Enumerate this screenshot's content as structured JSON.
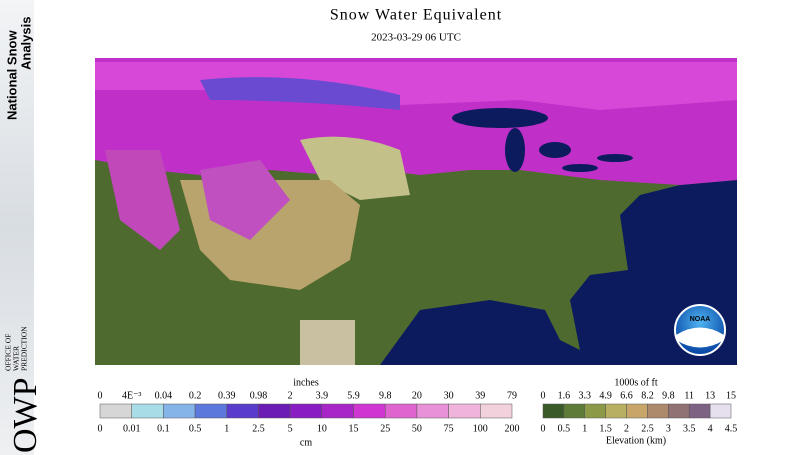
{
  "sidebar": {
    "title_lines": [
      "National Snow",
      "Analysis"
    ],
    "logo": "OWP",
    "org_lines": [
      "OFFICE OF",
      "WATER",
      "PREDICTION"
    ]
  },
  "header": {
    "title": "Snow Water Equivalent",
    "subtitle": "2023-03-29 06 UTC"
  },
  "map": {
    "badge": "NOAA"
  },
  "swe_legend": {
    "unit_top": "inches",
    "unit_bottom": "cm",
    "top_labels": [
      0,
      "4E⁻³",
      0.04,
      0.2,
      0.39,
      0.98,
      2,
      3.9,
      5.9,
      9.8,
      20,
      30,
      39,
      79
    ],
    "bottom_labels": [
      0,
      0.01,
      0.1,
      0.5,
      1,
      2.5,
      5,
      10,
      15,
      25,
      50,
      75,
      100,
      200
    ],
    "colors": [
      "#d6d6d6",
      "#a8dce6",
      "#84b4e8",
      "#5c78dc",
      "#5a3ccc",
      "#6a1cb4",
      "#8a1cc4",
      "#a826c8",
      "#cf36d2",
      "#e064d0",
      "#e890d8",
      "#f0b4dc",
      "#f2d0dc"
    ]
  },
  "elevation_legend": {
    "unit_top": "1000s of ft",
    "title_bottom": "Elevation (km)",
    "top_labels": [
      0,
      1.6,
      3.3,
      4.9,
      6.6,
      8.2,
      9.8,
      11,
      13,
      15
    ],
    "bottom_labels": [
      0,
      0.5,
      1,
      1.5,
      2,
      2.5,
      3,
      3.5,
      4,
      4.5
    ],
    "colors": [
      "#3a5a2a",
      "#5e7c38",
      "#8c9a48",
      "#b8b060",
      "#c8a66a",
      "#ae8a6c",
      "#907272",
      "#7e6284",
      "#e6e0ee"
    ]
  }
}
